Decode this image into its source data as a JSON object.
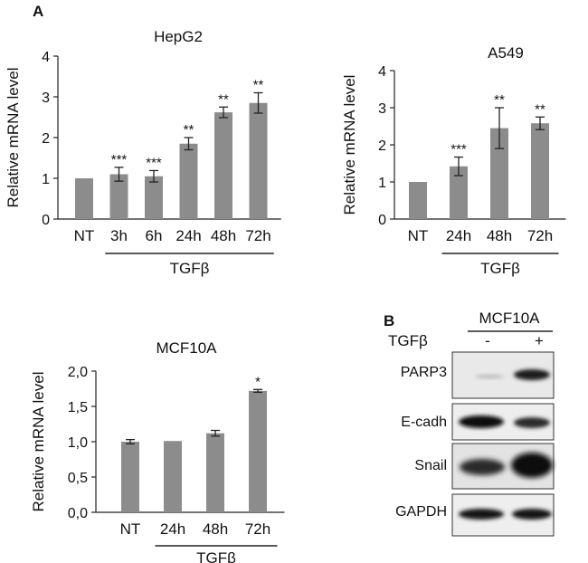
{
  "panel_labels": [
    "A",
    "B"
  ],
  "chart_data": [
    {
      "type": "bar",
      "title": "HepG2",
      "ylabel": "Relative mRNA level",
      "ylim": [
        0,
        4
      ],
      "yticks": [
        "0",
        "1",
        "2",
        "3",
        "4"
      ],
      "categories": [
        "NT",
        "3h",
        "6h",
        "24h",
        "48h",
        "72h"
      ],
      "values": [
        1.0,
        1.1,
        1.05,
        1.85,
        2.62,
        2.85
      ],
      "errors": [
        0.0,
        0.17,
        0.14,
        0.15,
        0.13,
        0.25
      ],
      "annotations": [
        "",
        "***",
        "***",
        "**",
        "**",
        "**"
      ],
      "group_label": "TGFβ",
      "group_range": [
        1,
        5
      ]
    },
    {
      "type": "bar",
      "title": "A549",
      "ylabel": "Relative mRNA level",
      "ylim": [
        0,
        4
      ],
      "yticks": [
        "0",
        "1",
        "2",
        "3",
        "4"
      ],
      "categories": [
        "NT",
        "24h",
        "48h",
        "72h"
      ],
      "values": [
        1.0,
        1.42,
        2.45,
        2.58
      ],
      "errors": [
        0.0,
        0.25,
        0.55,
        0.17
      ],
      "annotations": [
        "",
        "***",
        "**",
        "**"
      ],
      "group_label": "TGFβ",
      "group_range": [
        1,
        3
      ]
    },
    {
      "type": "bar",
      "title": "MCF10A",
      "ylabel": "Relative mRNA level",
      "ylim": [
        0,
        2
      ],
      "yticks": [
        "0,0",
        "0,5",
        "1,0",
        "1,5",
        "2,0"
      ],
      "categories": [
        "NT",
        "24h",
        "48h",
        "72h"
      ],
      "values": [
        1.0,
        1.01,
        1.12,
        1.72
      ],
      "errors": [
        0.03,
        0.0,
        0.04,
        0.02
      ],
      "annotations": [
        "",
        "",
        "",
        "*"
      ],
      "group_label": "TGFβ",
      "group_range": [
        1,
        3
      ]
    }
  ],
  "blot": {
    "cell_line": "MCF10A",
    "treatment_label": "TGFβ",
    "lanes": [
      "-",
      "+"
    ],
    "rows": [
      "PARP3",
      "E-cadh",
      "Snail",
      "GAPDH"
    ]
  }
}
